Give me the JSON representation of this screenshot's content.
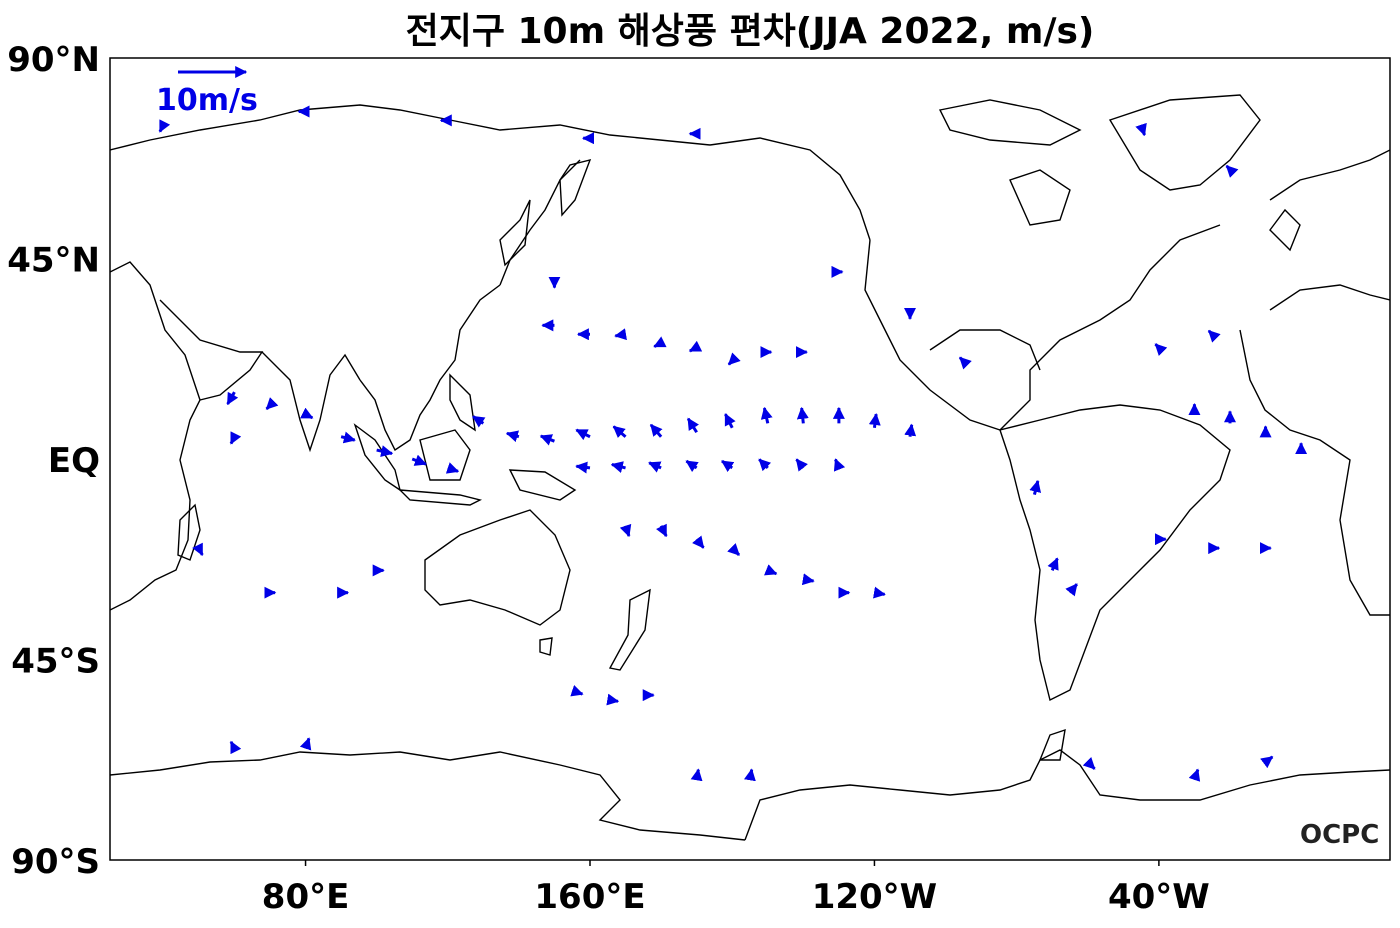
{
  "title": "전지구 10m 해상풍 편차(JJA 2022, m/s)",
  "axes": {
    "lat_ticks": [
      {
        "label": "90°N",
        "lat": 90
      },
      {
        "label": "45°N",
        "lat": 45
      },
      {
        "label": "EQ",
        "lat": 0
      },
      {
        "label": "45°S",
        "lat": -45
      },
      {
        "label": "90°S",
        "lat": -90
      }
    ],
    "lon_ticks": [
      {
        "label": "80°E",
        "lon": 80
      },
      {
        "label": "160°E",
        "lon": 160
      },
      {
        "label": "120°W",
        "lon": 240
      },
      {
        "label": "40°W",
        "lon": 320
      }
    ],
    "lon_range": [
      25,
      385
    ],
    "lat_range": [
      -90,
      90
    ]
  },
  "reference_arrow": {
    "label": "10m/s",
    "speed": 10
  },
  "credit": "OCPC",
  "colors": {
    "arrow": "#0000e6",
    "coast": "#000000"
  },
  "chart_data": {
    "type": "vector-map",
    "projection": "equirectangular",
    "vectors": [
      {
        "lon": 130,
        "lat": 8,
        "u": -3,
        "v": 2
      },
      {
        "lon": 140,
        "lat": 5,
        "u": -3.5,
        "v": 1
      },
      {
        "lon": 150,
        "lat": 4,
        "u": -4,
        "v": 1.5
      },
      {
        "lon": 160,
        "lat": 5,
        "u": -4,
        "v": 2
      },
      {
        "lon": 170,
        "lat": 5,
        "u": -3.5,
        "v": 3
      },
      {
        "lon": 180,
        "lat": 5,
        "u": -3,
        "v": 3.5
      },
      {
        "lon": 190,
        "lat": 6,
        "u": -2.5,
        "v": 4
      },
      {
        "lon": 200,
        "lat": 7,
        "u": -2,
        "v": 4
      },
      {
        "lon": 210,
        "lat": 8,
        "u": -1,
        "v": 4.5
      },
      {
        "lon": 220,
        "lat": 8,
        "u": -0.5,
        "v": 4.5
      },
      {
        "lon": 230,
        "lat": 8,
        "u": 0,
        "v": 4.5
      },
      {
        "lon": 240,
        "lat": 7,
        "u": 0.5,
        "v": 4
      },
      {
        "lon": 250,
        "lat": 5,
        "u": 0.5,
        "v": 3.5
      },
      {
        "lon": 160,
        "lat": -2,
        "u": -4,
        "v": 0.5
      },
      {
        "lon": 170,
        "lat": -2,
        "u": -4,
        "v": 1
      },
      {
        "lon": 180,
        "lat": -2,
        "u": -3.5,
        "v": 1.5
      },
      {
        "lon": 190,
        "lat": -2,
        "u": -3,
        "v": 2
      },
      {
        "lon": 200,
        "lat": -2,
        "u": -3,
        "v": 2
      },
      {
        "lon": 210,
        "lat": -2,
        "u": -2.5,
        "v": 2.5
      },
      {
        "lon": 220,
        "lat": -2,
        "u": -2,
        "v": 2.5
      },
      {
        "lon": 230,
        "lat": -2,
        "u": -1,
        "v": 2.5
      },
      {
        "lon": 170,
        "lat": -15,
        "u": 1,
        "v": -3
      },
      {
        "lon": 180,
        "lat": -15,
        "u": 1.5,
        "v": -3
      },
      {
        "lon": 190,
        "lat": -18,
        "u": 2,
        "v": -2.5
      },
      {
        "lon": 200,
        "lat": -20,
        "u": 2,
        "v": -2
      },
      {
        "lon": 210,
        "lat": -25,
        "u": 2.5,
        "v": -1
      },
      {
        "lon": 220,
        "lat": -27,
        "u": 3,
        "v": -0.5
      },
      {
        "lon": 230,
        "lat": -30,
        "u": 3,
        "v": 0
      },
      {
        "lon": 240,
        "lat": -30,
        "u": 3,
        "v": -0.5
      },
      {
        "lon": 150,
        "lat": 30,
        "u": -3.5,
        "v": 0
      },
      {
        "lon": 160,
        "lat": 28,
        "u": -3.5,
        "v": 0
      },
      {
        "lon": 170,
        "lat": 28,
        "u": -3,
        "v": -0.5
      },
      {
        "lon": 180,
        "lat": 26,
        "u": -2,
        "v": -1
      },
      {
        "lon": 190,
        "lat": 25,
        "u": -2,
        "v": -1
      },
      {
        "lon": 200,
        "lat": 22,
        "u": -1,
        "v": -1
      },
      {
        "lon": 210,
        "lat": 24,
        "u": 1,
        "v": 0
      },
      {
        "lon": 220,
        "lat": 24,
        "u": 1,
        "v": 0
      },
      {
        "lon": 90,
        "lat": 5,
        "u": 4,
        "v": -1
      },
      {
        "lon": 100,
        "lat": 2,
        "u": 4.5,
        "v": -1
      },
      {
        "lon": 110,
        "lat": 0,
        "u": 4,
        "v": -1.5
      },
      {
        "lon": 120,
        "lat": -2,
        "u": 3,
        "v": -1
      },
      {
        "lon": 80,
        "lat": 10,
        "u": 2,
        "v": -1
      },
      {
        "lon": 70,
        "lat": 12,
        "u": -1,
        "v": -1
      },
      {
        "lon": 60,
        "lat": 5,
        "u": -1,
        "v": -2
      },
      {
        "lon": 60,
        "lat": 15,
        "u": -2,
        "v": -3.5
      },
      {
        "lon": 50,
        "lat": -20,
        "u": 1,
        "v": -2
      },
      {
        "lon": 70,
        "lat": -30,
        "u": 1.5,
        "v": 0
      },
      {
        "lon": 90,
        "lat": -30,
        "u": 2,
        "v": 0
      },
      {
        "lon": 100,
        "lat": -25,
        "u": 2,
        "v": 0
      },
      {
        "lon": 155,
        "lat": -52,
        "u": 3,
        "v": -1
      },
      {
        "lon": 165,
        "lat": -54,
        "u": 3,
        "v": -0.5
      },
      {
        "lon": 175,
        "lat": -53,
        "u": 3,
        "v": 0
      },
      {
        "lon": 285,
        "lat": -8,
        "u": 1,
        "v": 4
      },
      {
        "lon": 290,
        "lat": -25,
        "u": 1.5,
        "v": 3.5
      },
      {
        "lon": 295,
        "lat": -30,
        "u": 2,
        "v": 2.5
      },
      {
        "lon": 330,
        "lat": 10,
        "u": 0,
        "v": 3
      },
      {
        "lon": 340,
        "lat": 8,
        "u": 0,
        "v": 3.5
      },
      {
        "lon": 350,
        "lat": 5,
        "u": 0,
        "v": 3
      },
      {
        "lon": 360,
        "lat": 2,
        "u": 0,
        "v": 2
      },
      {
        "lon": 320,
        "lat": -18,
        "u": 2,
        "v": 0
      },
      {
        "lon": 335,
        "lat": -20,
        "u": 2,
        "v": 0
      },
      {
        "lon": 350,
        "lat": -20,
        "u": 1.5,
        "v": 0
      },
      {
        "lon": 320,
        "lat": 25,
        "u": -1,
        "v": 1
      },
      {
        "lon": 335,
        "lat": 28,
        "u": -1,
        "v": 1
      },
      {
        "lon": 80,
        "lat": -65,
        "u": 1,
        "v": 3
      },
      {
        "lon": 60,
        "lat": -65,
        "u": -1,
        "v": 2
      },
      {
        "lon": 190,
        "lat": -72,
        "u": 0.5,
        "v": 3
      },
      {
        "lon": 205,
        "lat": -72,
        "u": 0.5,
        "v": 3
      },
      {
        "lon": 300,
        "lat": -68,
        "u": 2,
        "v": -2
      },
      {
        "lon": 330,
        "lat": -72,
        "u": 1,
        "v": 3
      },
      {
        "lon": 350,
        "lat": -68,
        "u": 2,
        "v": 1.5
      },
      {
        "lon": 40,
        "lat": 75,
        "u": -1,
        "v": -2
      },
      {
        "lon": 80,
        "lat": 78,
        "u": -2,
        "v": 0
      },
      {
        "lon": 120,
        "lat": 76,
        "u": -2,
        "v": 0
      },
      {
        "lon": 160,
        "lat": 72,
        "u": -2,
        "v": 0
      },
      {
        "lon": 190,
        "lat": 73,
        "u": -2,
        "v": 0
      },
      {
        "lon": 315,
        "lat": 75,
        "u": 1,
        "v": -3
      },
      {
        "lon": 340,
        "lat": 65,
        "u": -1,
        "v": 1
      },
      {
        "lon": 150,
        "lat": 40,
        "u": 0,
        "v": -2
      },
      {
        "lon": 230,
        "lat": 42,
        "u": 1,
        "v": 0
      },
      {
        "lon": 250,
        "lat": 33,
        "u": 0,
        "v": -2
      },
      {
        "lon": 265,
        "lat": 22,
        "u": -1,
        "v": 1
      }
    ]
  }
}
